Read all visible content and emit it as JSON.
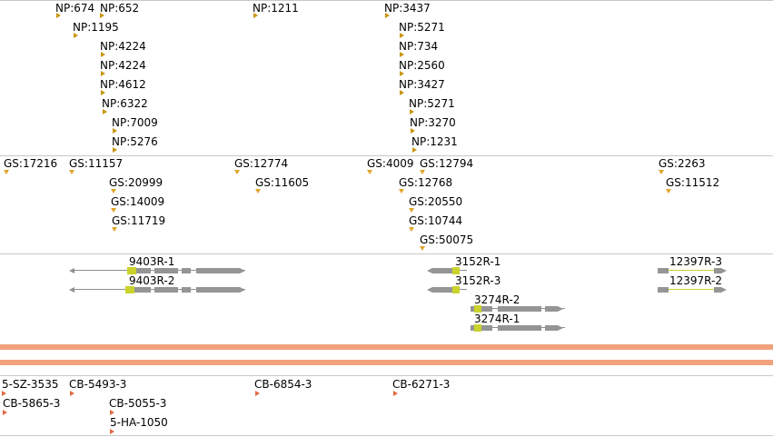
{
  "colors": {
    "np_marker": "#c8960e",
    "gs_marker": "#e0a52a",
    "cb_marker": "#e46a43",
    "band": "#f1a27c",
    "separator": "#c8c8c8",
    "gene_body": "#959595",
    "gene_highlight": "#c9d32c"
  },
  "tracks": {
    "np": {
      "features": [
        {
          "label": "NP:674"
        },
        {
          "label": "NP:652"
        },
        {
          "label": "NP:1211"
        },
        {
          "label": "NP:3437"
        },
        {
          "label": "NP:1195"
        },
        {
          "label": "NP:5271"
        },
        {
          "label": "NP:4224"
        },
        {
          "label": "NP:734"
        },
        {
          "label": "NP:4224"
        },
        {
          "label": "NP:2560"
        },
        {
          "label": "NP:4612"
        },
        {
          "label": "NP:3427"
        },
        {
          "label": "NP:6322"
        },
        {
          "label": "NP:5271"
        },
        {
          "label": "NP:7009"
        },
        {
          "label": "NP:3270"
        },
        {
          "label": "NP:5276"
        },
        {
          "label": "NP:1231"
        }
      ]
    },
    "gs": {
      "features": [
        {
          "label": "GS:17216"
        },
        {
          "label": "GS:11157"
        },
        {
          "label": "GS:12774"
        },
        {
          "label": "GS:4009"
        },
        {
          "label": "GS:12794"
        },
        {
          "label": "GS:2263"
        },
        {
          "label": "GS:20999"
        },
        {
          "label": "GS:11605"
        },
        {
          "label": "GS:12768"
        },
        {
          "label": "GS:11512"
        },
        {
          "label": "GS:14009"
        },
        {
          "label": "GS:20550"
        },
        {
          "label": "GS:11719"
        },
        {
          "label": "GS:10744"
        },
        {
          "label": "GS:50075"
        }
      ]
    },
    "genes": {
      "features": [
        {
          "label": "9403R-1"
        },
        {
          "label": "9403R-2"
        },
        {
          "label": "3152R-1"
        },
        {
          "label": "3152R-3"
        },
        {
          "label": "3274R-2"
        },
        {
          "label": "3274R-1"
        },
        {
          "label": "12397R-3"
        },
        {
          "label": "12397R-2"
        }
      ]
    },
    "cb": {
      "features": [
        {
          "label": "5-SZ-3535"
        },
        {
          "label": "CB-5493-3"
        },
        {
          "label": "CB-6854-3"
        },
        {
          "label": "CB-6271-3"
        },
        {
          "label": "CB-5865-3"
        },
        {
          "label": "CB-5055-3"
        },
        {
          "label": "5-HA-1050"
        }
      ]
    }
  }
}
